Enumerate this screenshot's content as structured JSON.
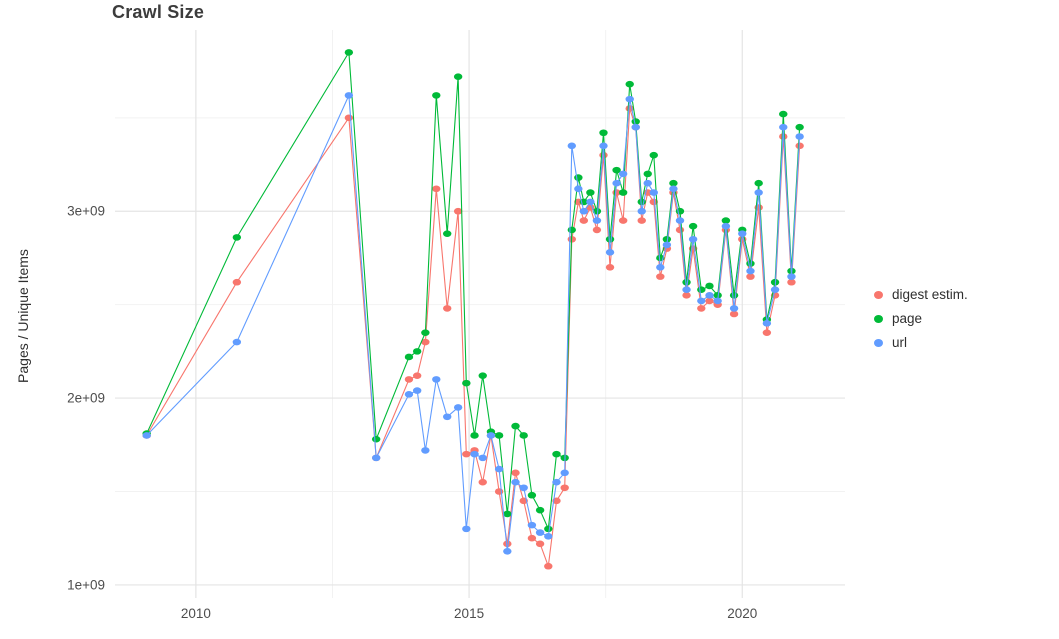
{
  "colors": {
    "grid_major": "#e4e4e4",
    "grid_minor": "#f2f2f2",
    "tick_text": "#4d4d4d",
    "title_text": "#3c3c3c"
  },
  "chart_data": {
    "type": "line",
    "title": "Crawl Size",
    "xlabel": "",
    "ylabel": "Pages / Unique Items",
    "values_unit": "1e+09 (values below are in billions)",
    "legend_position": "right",
    "grid": true,
    "xlim": [
      2008.52,
      2021.88
    ],
    "ylim_1e9": [
      0.93,
      3.97
    ],
    "x_ticks": [
      {
        "value": 2010,
        "label": "2010"
      },
      {
        "value": 2015,
        "label": "2015"
      },
      {
        "value": 2020,
        "label": "2020"
      }
    ],
    "y_ticks": [
      {
        "value": 1,
        "label": "1e+09"
      },
      {
        "value": 2,
        "label": "2e+09"
      },
      {
        "value": 3,
        "label": "3e+09"
      }
    ],
    "x_minor": [
      2012.5,
      2017.5
    ],
    "y_minor": [
      1.5,
      2.5,
      3.5
    ],
    "x": [
      2009.1,
      2010.75,
      2012.8,
      2013.3,
      2013.9,
      2014.05,
      2014.2,
      2014.4,
      2014.6,
      2014.8,
      2014.95,
      2015.1,
      2015.25,
      2015.4,
      2015.55,
      2015.7,
      2015.85,
      2016.0,
      2016.15,
      2016.3,
      2016.45,
      2016.6,
      2016.75,
      2016.88,
      2017.0,
      2017.1,
      2017.22,
      2017.34,
      2017.46,
      2017.58,
      2017.7,
      2017.82,
      2017.94,
      2018.05,
      2018.16,
      2018.27,
      2018.38,
      2018.5,
      2018.62,
      2018.74,
      2018.86,
      2018.98,
      2019.1,
      2019.25,
      2019.4,
      2019.55,
      2019.7,
      2019.85,
      2020.0,
      2020.15,
      2020.3,
      2020.45,
      2020.6,
      2020.75,
      2020.9,
      2021.05
    ],
    "series": [
      {
        "name": "digest estim.",
        "color": "#F8766D",
        "values": [
          1.8,
          2.62,
          3.5,
          1.68,
          2.1,
          2.12,
          2.3,
          3.12,
          2.48,
          3.0,
          1.7,
          1.72,
          1.55,
          1.8,
          1.5,
          1.22,
          1.6,
          1.45,
          1.25,
          1.22,
          1.1,
          1.45,
          1.52,
          2.85,
          3.05,
          2.95,
          3.02,
          2.9,
          3.3,
          2.7,
          3.1,
          2.95,
          3.55,
          3.45,
          2.95,
          3.1,
          3.05,
          2.65,
          2.8,
          3.1,
          2.9,
          2.55,
          2.8,
          2.48,
          2.52,
          2.5,
          2.9,
          2.45,
          2.85,
          2.65,
          3.02,
          2.35,
          2.55,
          3.4,
          2.62,
          3.35
        ]
      },
      {
        "name": "page",
        "color": "#00BA38",
        "values": [
          1.81,
          2.86,
          3.85,
          1.78,
          2.22,
          2.25,
          2.35,
          3.62,
          2.88,
          3.72,
          2.08,
          1.8,
          2.12,
          1.82,
          1.8,
          1.38,
          1.85,
          1.8,
          1.48,
          1.4,
          1.3,
          1.7,
          1.68,
          2.9,
          3.18,
          3.05,
          3.1,
          3.0,
          3.42,
          2.85,
          3.22,
          3.1,
          3.68,
          3.48,
          3.05,
          3.2,
          3.3,
          2.75,
          2.85,
          3.15,
          3.0,
          2.62,
          2.92,
          2.58,
          2.6,
          2.55,
          2.95,
          2.55,
          2.9,
          2.72,
          3.15,
          2.42,
          2.62,
          3.52,
          2.68,
          3.45
        ]
      },
      {
        "name": "url",
        "color": "#619CFF",
        "values": [
          1.8,
          2.3,
          3.62,
          1.68,
          2.02,
          2.04,
          1.72,
          2.1,
          1.9,
          1.95,
          1.3,
          1.7,
          1.68,
          1.8,
          1.62,
          1.18,
          1.55,
          1.52,
          1.32,
          1.28,
          1.26,
          1.55,
          1.6,
          3.35,
          3.12,
          3.0,
          3.05,
          2.95,
          3.35,
          2.78,
          3.15,
          3.2,
          3.6,
          3.45,
          3.0,
          3.15,
          3.1,
          2.7,
          2.82,
          3.12,
          2.95,
          2.58,
          2.85,
          2.52,
          2.55,
          2.52,
          2.92,
          2.48,
          2.88,
          2.68,
          3.1,
          2.4,
          2.58,
          3.45,
          2.65,
          3.4
        ]
      }
    ]
  }
}
